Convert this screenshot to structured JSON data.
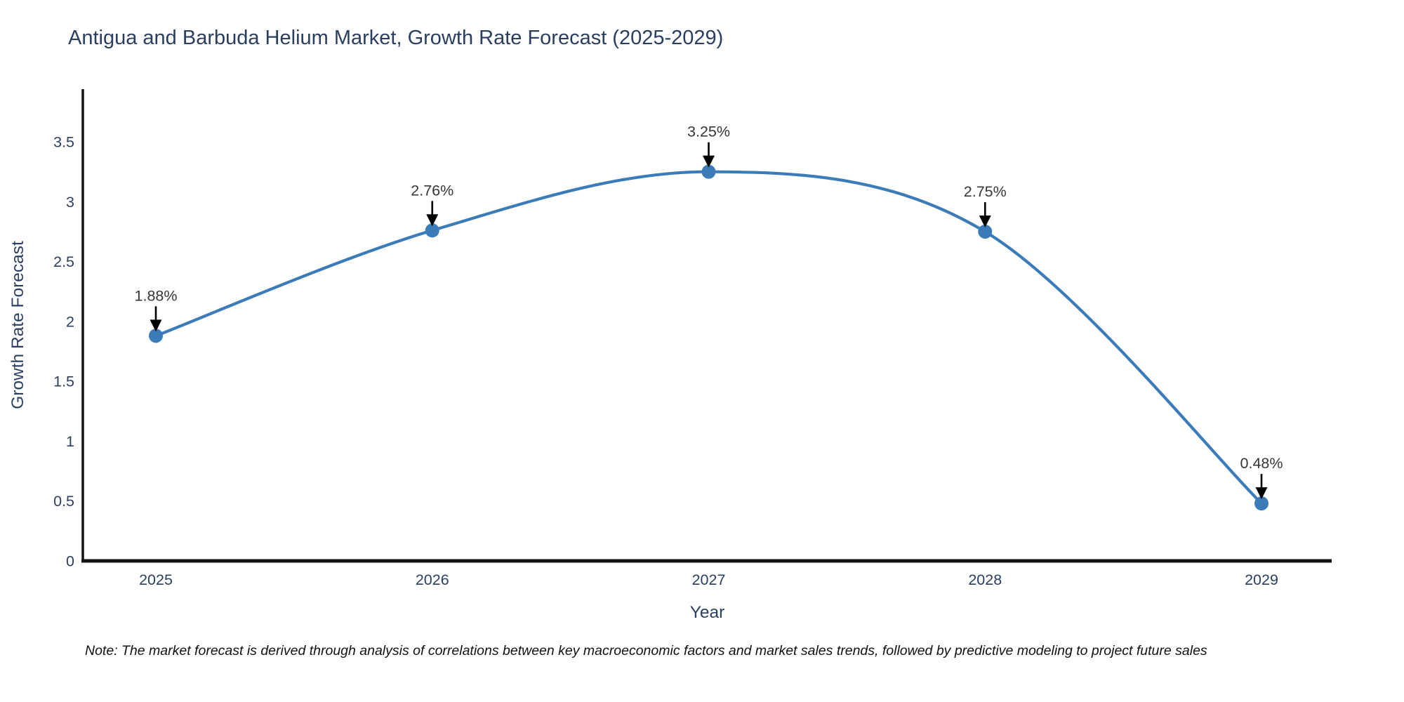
{
  "title": {
    "text": "Antigua and Barbuda Helium Market, Growth Rate Forecast (2025-2029)",
    "color": "#2a3f5f"
  },
  "note": {
    "text": "Note: The market forecast is derived through analysis of correlations between key macroeconomic factors and market sales trends, followed by predictive modeling to project future sales"
  },
  "chart_data": {
    "type": "line",
    "line_shape": "spline",
    "title": "Antigua and Barbuda Helium Market, Growth Rate Forecast (2025-2029)",
    "xlabel": "Year",
    "ylabel": "Growth Rate Forecast",
    "x": [
      2025,
      2026,
      2027,
      2028,
      2029
    ],
    "values": [
      1.88,
      2.76,
      3.25,
      2.75,
      0.48
    ],
    "point_labels": [
      "1.88%",
      "2.76%",
      "3.25%",
      "2.75%",
      "0.48%"
    ],
    "xtick_labels": [
      "2025",
      "2026",
      "2027",
      "2028",
      "2029"
    ],
    "yticks": [
      0,
      0.5,
      1,
      1.5,
      2,
      2.5,
      3,
      3.5
    ],
    "ytick_labels": [
      "0",
      "0.5",
      "1",
      "1.5",
      "2",
      "2.5",
      "3",
      "3.5"
    ],
    "xlim": [
      2024.74,
      2029.26
    ],
    "ylim": [
      0,
      3.94
    ],
    "grid": false,
    "legend": "none",
    "colors": {
      "line": "#3b7bb8",
      "marker": "#3b7bb8",
      "axis": "#141414",
      "tick_text": "#2a3f5f",
      "axis_title_text": "#2a3f5f",
      "annotation_text": "#363636",
      "arrow": "#000000",
      "background": "#ffffff"
    }
  }
}
